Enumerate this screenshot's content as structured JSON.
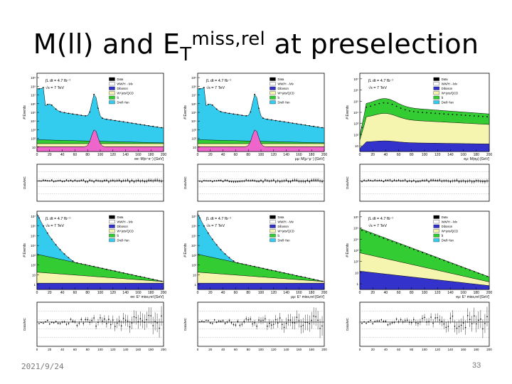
{
  "slide": {
    "title_main": "M(ll) and E",
    "title_sub": "T",
    "title_sup": "miss,rel",
    "title_rest": " at preselection",
    "date": "2021/9/24",
    "page_number": "33"
  },
  "legend": {
    "entries": [
      "Data",
      "WW/H→lνlν",
      "Diboson",
      "W+jets/QCD",
      "t̄t",
      "Drell-Yan"
    ],
    "colors": [
      "#000000",
      "#ffffff",
      "#3333cc",
      "#f5f5b0",
      "#33cc33",
      "#33ccee"
    ],
    "signal_color": "#ee66cc"
  },
  "chart_data": [
    {
      "type": "area",
      "panel": "ee mass",
      "lumi_label": "∫L dt = 4.7 fb⁻¹",
      "energy_label": "√s = 7 TeV",
      "xlabel": "ee: M(e⁺e⁻) [GeV]",
      "x_ticks": [
        "0",
        "20",
        "40",
        "60",
        "80",
        "100",
        "120",
        "140",
        "160",
        "180",
        "200"
      ],
      "y_ticks": [
        "10",
        "10²",
        "10³",
        "10⁴",
        "10⁵",
        "10⁶",
        "10⁷",
        "10⁸",
        "10⁹"
      ],
      "y_label": "# Events",
      "ratio_label": "Data/MC",
      "log_y": true,
      "xlim": [
        0,
        200
      ],
      "shape": "peak"
    },
    {
      "type": "area",
      "panel": "mumu mass",
      "lumi_label": "∫L dt = 4.7 fb⁻¹",
      "energy_label": "√s = 7 TeV",
      "xlabel": "μμ: M(μ⁺μ⁻) [GeV]",
      "x_ticks": [
        "0",
        "20",
        "40",
        "60",
        "80",
        "100",
        "120",
        "140",
        "160",
        "180",
        "200"
      ],
      "y_ticks": [
        "10",
        "10²",
        "10³",
        "10⁴",
        "10⁵",
        "10⁶",
        "10⁷",
        "10⁸",
        "10⁹"
      ],
      "y_label": "# Events",
      "ratio_label": "Data/MC",
      "log_y": true,
      "xlim": [
        0,
        200
      ],
      "shape": "peak"
    },
    {
      "type": "area",
      "panel": "emu mass",
      "lumi_label": "∫L dt = 4.7 fb⁻¹",
      "energy_label": "√s = 7 TeV",
      "xlabel": "eμ: M(eμ) [GeV]",
      "x_ticks": [
        "0",
        "20",
        "40",
        "60",
        "80",
        "100",
        "120",
        "140",
        "160",
        "180",
        "200"
      ],
      "y_ticks": [
        "10",
        "10²",
        "10³",
        "10⁴",
        "10⁵",
        "10⁶",
        "10⁷"
      ],
      "y_label": "# Events",
      "ratio_label": "Data/MC",
      "log_y": true,
      "xlim": [
        0,
        200
      ],
      "shape": "plateau"
    },
    {
      "type": "area",
      "panel": "ee met",
      "lumi_label": "∫L dt = 4.7 fb⁻¹",
      "energy_label": "√s = 7 TeV",
      "xlabel": "ee: Eᵀ miss,rel [GeV]",
      "x_ticks": [
        "0",
        "20",
        "40",
        "60",
        "80",
        "100",
        "120",
        "140",
        "160",
        "180",
        "200"
      ],
      "y_ticks": [
        "1",
        "10",
        "10²",
        "10³",
        "10⁴",
        "10⁵",
        "10⁶",
        "10⁷"
      ],
      "y_label": "# Events",
      "ratio_label": "Data/MC",
      "log_y": true,
      "xlim": [
        0,
        200
      ],
      "shape": "falling"
    },
    {
      "type": "area",
      "panel": "mumu met",
      "lumi_label": "∫L dt = 4.7 fb⁻¹",
      "energy_label": "√s = 7 TeV",
      "xlabel": "μμ: Eᵀ miss,rel [GeV]",
      "x_ticks": [
        "0",
        "20",
        "40",
        "60",
        "80",
        "100",
        "120",
        "140",
        "160",
        "180",
        "200"
      ],
      "y_ticks": [
        "1",
        "10",
        "10²",
        "10³",
        "10⁴",
        "10⁵",
        "10⁶",
        "10⁷"
      ],
      "y_label": "# Events",
      "ratio_label": "Data/MC",
      "log_y": true,
      "xlim": [
        0,
        200
      ],
      "shape": "falling"
    },
    {
      "type": "area",
      "panel": "emu met",
      "lumi_label": "∫L dt = 4.7 fb⁻¹",
      "energy_label": "√s = 7 TeV",
      "xlabel": "eμ: Eᵀ miss,rel [GeV]",
      "x_ticks": [
        "0",
        "20",
        "40",
        "60",
        "80",
        "100",
        "120",
        "140",
        "160",
        "180",
        "200"
      ],
      "y_ticks": [
        "1",
        "10",
        "10²",
        "10³",
        "10⁴",
        "10⁵",
        "10⁶"
      ],
      "y_label": "# Events",
      "ratio_label": "Data/MC",
      "log_y": true,
      "xlim": [
        0,
        200
      ],
      "shape": "falling_emu"
    }
  ]
}
